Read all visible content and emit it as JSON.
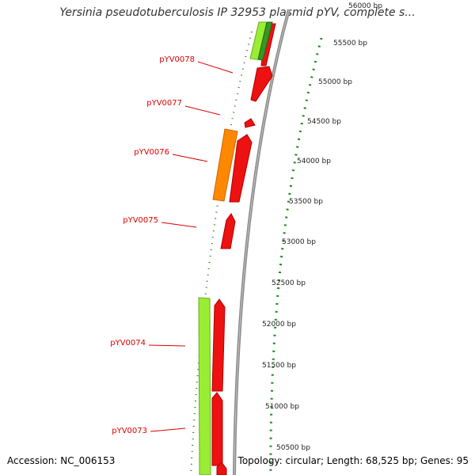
{
  "title": "Yersinia pseudotuberculosis IP 32953 plasmid pYV, complete s...",
  "footer": {
    "accession": "Accession: NC_006153",
    "topology": "Topology: circular; Length: 68,525 bp; Genes: 95"
  },
  "colors": {
    "gene_forward": "#ee0000",
    "gene_reverse_green": "#99ee33",
    "gene_reverse_dark_green": "#339922",
    "gene_orange": "#ff8800",
    "backbone": "#808080",
    "ticks": "#1a7a1a",
    "label_red": "#dd0000"
  },
  "scale_ticks": [
    {
      "bp": 50500,
      "label": "50500 bp"
    },
    {
      "bp": 51000,
      "label": "51000 bp"
    },
    {
      "bp": 51500,
      "label": "51500 bp"
    },
    {
      "bp": 52000,
      "label": "52000 bp"
    },
    {
      "bp": 52500,
      "label": "52500 bp"
    },
    {
      "bp": 53000,
      "label": "53000 bp"
    },
    {
      "bp": 53500,
      "label": "53500 bp"
    },
    {
      "bp": 54000,
      "label": "54000 bp"
    },
    {
      "bp": 54500,
      "label": "54500 bp"
    },
    {
      "bp": 55000,
      "label": "55000 bp"
    },
    {
      "bp": 55500,
      "label": "55500 bp"
    },
    {
      "bp": 56000,
      "label": "56000 bp"
    }
  ],
  "gene_labels": [
    {
      "name": "pYV0078"
    },
    {
      "name": "pYV0077"
    },
    {
      "name": "pYV0076"
    },
    {
      "name": "pYV0075"
    },
    {
      "name": "pYV0074"
    },
    {
      "name": "pYV0073"
    }
  ]
}
